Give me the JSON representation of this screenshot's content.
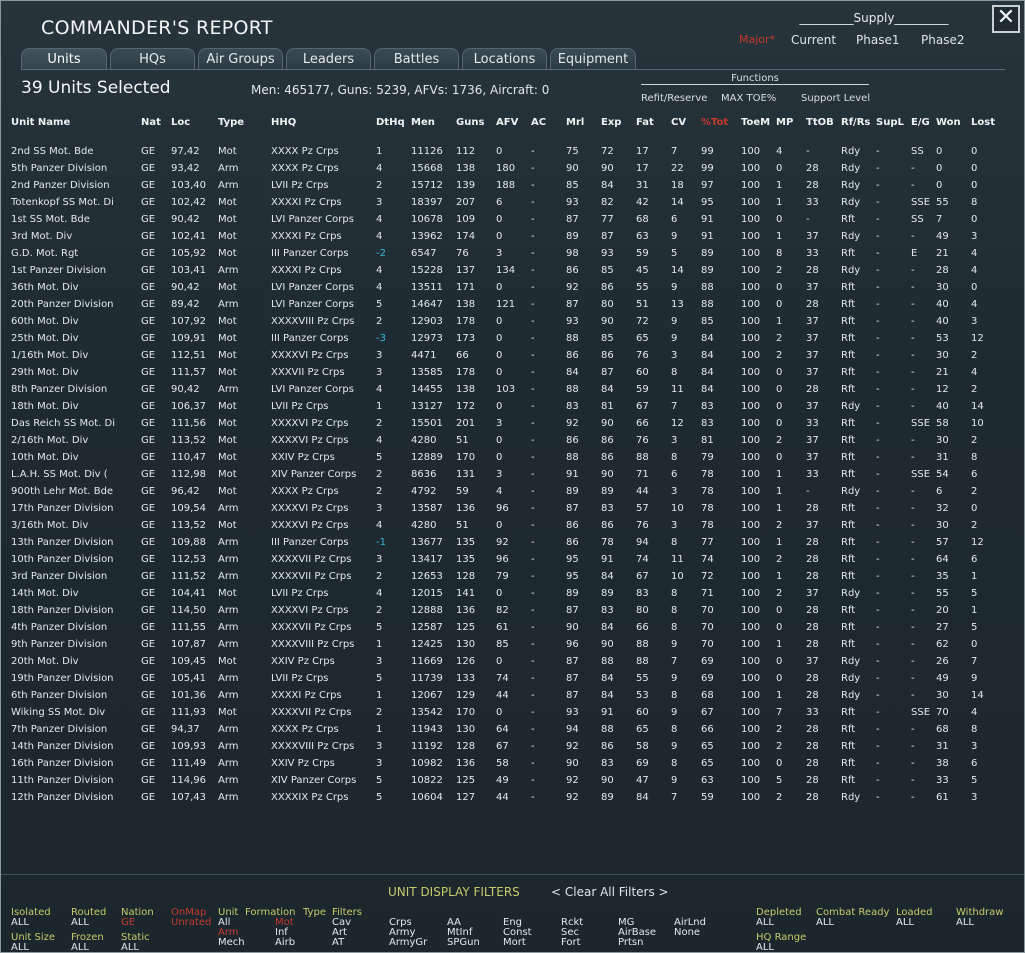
{
  "title": "COMMANDER'S REPORT",
  "close": "✕",
  "supply": {
    "title": "_________Supply_________",
    "major": "Major*",
    "current": "Current",
    "phase1": "Phase1",
    "phase2": "Phase2"
  },
  "tabs": [
    "Units",
    "HQs",
    "Air Groups",
    "Leaders",
    "Battles",
    "Locations",
    "Equipment"
  ],
  "selected": "39 Units Selected",
  "summary": "Men: 465177, Guns: 5239, AFVs: 1736, Aircraft: 0",
  "functions": {
    "title": "Functions",
    "refit": "Refit/Reserve",
    "maxtoe": "MAX TOE%",
    "support": "Support Level"
  },
  "columns": [
    "Unit Name",
    "Nat",
    "Loc",
    "Type",
    "HHQ",
    "DtHq",
    "Men",
    "Guns",
    "AFV",
    "AC",
    "Mrl",
    "Exp",
    "Fat",
    "CV",
    "%Tot",
    "ToeM",
    "MP",
    "TtOB",
    "Rf/Rs",
    "SupL",
    "E/G",
    "Won",
    "Lost"
  ],
  "rows": [
    [
      "2nd SS Mot. Bde",
      "GE",
      "97,42",
      "Mot",
      "XXXX Pz Crps",
      "1",
      "11126",
      "112",
      "0",
      "-",
      "75",
      "72",
      "17",
      "7",
      "99",
      "100",
      "4",
      "-",
      "Rdy",
      "-",
      "SS",
      "0",
      "0"
    ],
    [
      "5th Panzer Division",
      "GE",
      "93,42",
      "Arm",
      "XXXX Pz Crps",
      "4",
      "15668",
      "138",
      "180",
      "-",
      "90",
      "90",
      "17",
      "22",
      "99",
      "100",
      "0",
      "28",
      "Rdy",
      "-",
      "-",
      "0",
      "0"
    ],
    [
      "2nd Panzer Division",
      "GE",
      "103,40",
      "Arm",
      "LVII Pz Crps",
      "2",
      "15712",
      "139",
      "188",
      "-",
      "85",
      "84",
      "31",
      "18",
      "97",
      "100",
      "1",
      "28",
      "Rdy",
      "-",
      "-",
      "0",
      "0"
    ],
    [
      "Totenkopf SS Mot. Di",
      "GE",
      "102,42",
      "Mot",
      "XXXXI Pz Crps",
      "3",
      "18397",
      "207",
      "6",
      "-",
      "93",
      "82",
      "42",
      "14",
      "95",
      "100",
      "1",
      "33",
      "Rdy",
      "-",
      "SSE",
      "55",
      "8"
    ],
    [
      "1st SS Mot. Bde",
      "GE",
      "90,42",
      "Mot",
      "LVI Panzer Corps",
      "4",
      "10678",
      "109",
      "0",
      "-",
      "87",
      "77",
      "68",
      "6",
      "91",
      "100",
      "0",
      "-",
      "Rft",
      "-",
      "SS",
      "7",
      "0"
    ],
    [
      "3rd Mot. Div",
      "GE",
      "102,41",
      "Mot",
      "XXXXI Pz Crps",
      "4",
      "13962",
      "174",
      "0",
      "-",
      "89",
      "87",
      "63",
      "9",
      "91",
      "100",
      "1",
      "37",
      "Rdy",
      "-",
      "-",
      "49",
      "3"
    ],
    [
      "G.D. Mot. Rgt",
      "GE",
      "105,92",
      "Mot",
      "III Panzer Corps",
      "-2",
      "6547",
      "76",
      "3",
      "-",
      "98",
      "93",
      "59",
      "5",
      "89",
      "100",
      "8",
      "33",
      "Rft",
      "-",
      "E",
      "21",
      "4"
    ],
    [
      "1st Panzer Division",
      "GE",
      "103,41",
      "Arm",
      "XXXXI Pz Crps",
      "4",
      "15228",
      "137",
      "134",
      "-",
      "86",
      "85",
      "45",
      "14",
      "89",
      "100",
      "2",
      "28",
      "Rdy",
      "-",
      "-",
      "28",
      "4"
    ],
    [
      "36th Mot. Div",
      "GE",
      "90,42",
      "Mot",
      "LVI Panzer Corps",
      "4",
      "13511",
      "171",
      "0",
      "-",
      "92",
      "86",
      "55",
      "9",
      "88",
      "100",
      "0",
      "37",
      "Rft",
      "-",
      "-",
      "30",
      "0"
    ],
    [
      "20th Panzer Division",
      "GE",
      "89,42",
      "Arm",
      "LVI Panzer Corps",
      "5",
      "14647",
      "138",
      "121",
      "-",
      "87",
      "80",
      "51",
      "13",
      "88",
      "100",
      "0",
      "28",
      "Rft",
      "-",
      "-",
      "40",
      "4"
    ],
    [
      "60th Mot. Div",
      "GE",
      "107,92",
      "Mot",
      "XXXXVIII Pz Crps",
      "2",
      "12903",
      "178",
      "0",
      "-",
      "93",
      "90",
      "72",
      "9",
      "85",
      "100",
      "1",
      "37",
      "Rft",
      "-",
      "-",
      "40",
      "3"
    ],
    [
      "25th Mot. Div",
      "GE",
      "109,91",
      "Mot",
      "III Panzer Corps",
      "-3",
      "12973",
      "173",
      "0",
      "-",
      "88",
      "85",
      "65",
      "9",
      "84",
      "100",
      "2",
      "37",
      "Rft",
      "-",
      "-",
      "53",
      "12"
    ],
    [
      "1/16th Mot. Div",
      "GE",
      "112,51",
      "Mot",
      "XXXXVI Pz Crps",
      "3",
      "4471",
      "66",
      "0",
      "-",
      "86",
      "86",
      "76",
      "3",
      "84",
      "100",
      "2",
      "37",
      "Rft",
      "-",
      "-",
      "30",
      "2"
    ],
    [
      "29th Mot. Div",
      "GE",
      "111,57",
      "Mot",
      "XXXVII Pz Crps",
      "3",
      "13585",
      "178",
      "0",
      "-",
      "84",
      "87",
      "60",
      "8",
      "84",
      "100",
      "0",
      "37",
      "Rft",
      "-",
      "-",
      "21",
      "4"
    ],
    [
      "8th Panzer Division",
      "GE",
      "90,42",
      "Arm",
      "LVI Panzer Corps",
      "4",
      "14455",
      "138",
      "103",
      "-",
      "88",
      "84",
      "59",
      "11",
      "84",
      "100",
      "0",
      "28",
      "Rft",
      "-",
      "-",
      "12",
      "2"
    ],
    [
      "18th Mot. Div",
      "GE",
      "106,37",
      "Mot",
      "LVII Pz Crps",
      "1",
      "13127",
      "172",
      "0",
      "-",
      "83",
      "81",
      "67",
      "7",
      "83",
      "100",
      "0",
      "37",
      "Rdy",
      "-",
      "-",
      "40",
      "14"
    ],
    [
      "Das Reich SS Mot. Di",
      "GE",
      "111,56",
      "Mot",
      "XXXXVI Pz Crps",
      "2",
      "15501",
      "201",
      "3",
      "-",
      "92",
      "90",
      "66",
      "12",
      "83",
      "100",
      "0",
      "33",
      "Rft",
      "-",
      "SSE",
      "58",
      "10"
    ],
    [
      "2/16th Mot. Div",
      "GE",
      "113,52",
      "Mot",
      "XXXXVI Pz Crps",
      "4",
      "4280",
      "51",
      "0",
      "-",
      "86",
      "86",
      "76",
      "3",
      "81",
      "100",
      "2",
      "37",
      "Rft",
      "-",
      "-",
      "30",
      "2"
    ],
    [
      "10th Mot. Div",
      "GE",
      "110,47",
      "Mot",
      "XXIV Pz Crps",
      "5",
      "12889",
      "170",
      "0",
      "-",
      "88",
      "86",
      "88",
      "8",
      "79",
      "100",
      "0",
      "37",
      "Rft",
      "-",
      "-",
      "31",
      "8"
    ],
    [
      "L.A.H. SS Mot. Div (",
      "GE",
      "112,98",
      "Mot",
      "XIV Panzer Corps",
      "2",
      "8636",
      "131",
      "3",
      "-",
      "91",
      "90",
      "71",
      "6",
      "78",
      "100",
      "1",
      "33",
      "Rft",
      "-",
      "SSE",
      "54",
      "6"
    ],
    [
      "900th Lehr Mot. Bde",
      "GE",
      "96,42",
      "Mot",
      "XXXX Pz Crps",
      "2",
      "4792",
      "59",
      "4",
      "-",
      "89",
      "89",
      "44",
      "3",
      "78",
      "100",
      "1",
      "-",
      "Rdy",
      "-",
      "-",
      "6",
      "2"
    ],
    [
      "17th Panzer Division",
      "GE",
      "109,54",
      "Arm",
      "XXXXVI Pz Crps",
      "3",
      "13587",
      "136",
      "96",
      "-",
      "87",
      "83",
      "57",
      "10",
      "78",
      "100",
      "1",
      "28",
      "Rft",
      "-",
      "-",
      "32",
      "0"
    ],
    [
      "3/16th Mot. Div",
      "GE",
      "113,52",
      "Mot",
      "XXXXVI Pz Crps",
      "4",
      "4280",
      "51",
      "0",
      "-",
      "86",
      "86",
      "76",
      "3",
      "78",
      "100",
      "2",
      "37",
      "Rft",
      "-",
      "-",
      "30",
      "2"
    ],
    [
      "13th Panzer Division",
      "GE",
      "109,88",
      "Arm",
      "III Panzer Corps",
      "-1",
      "13677",
      "135",
      "92",
      "-",
      "86",
      "78",
      "94",
      "8",
      "77",
      "100",
      "1",
      "28",
      "Rft",
      "-",
      "-",
      "57",
      "12"
    ],
    [
      "10th Panzer Division",
      "GE",
      "112,53",
      "Arm",
      "XXXXVII Pz Crps",
      "3",
      "13417",
      "135",
      "96",
      "-",
      "95",
      "91",
      "74",
      "11",
      "74",
      "100",
      "2",
      "28",
      "Rft",
      "-",
      "-",
      "64",
      "6"
    ],
    [
      "3rd Panzer Division",
      "GE",
      "111,52",
      "Arm",
      "XXXXVII Pz Crps",
      "2",
      "12653",
      "128",
      "79",
      "-",
      "95",
      "84",
      "67",
      "10",
      "72",
      "100",
      "1",
      "28",
      "Rft",
      "-",
      "-",
      "35",
      "1"
    ],
    [
      "14th Mot. Div",
      "GE",
      "104,41",
      "Mot",
      "LVII Pz Crps",
      "4",
      "12015",
      "141",
      "0",
      "-",
      "89",
      "89",
      "83",
      "8",
      "71",
      "100",
      "2",
      "37",
      "Rdy",
      "-",
      "-",
      "55",
      "5"
    ],
    [
      "18th Panzer Division",
      "GE",
      "114,50",
      "Arm",
      "XXXXVI Pz Crps",
      "2",
      "12888",
      "136",
      "82",
      "-",
      "87",
      "83",
      "80",
      "8",
      "70",
      "100",
      "0",
      "28",
      "Rft",
      "-",
      "-",
      "20",
      "1"
    ],
    [
      "4th Panzer Division",
      "GE",
      "111,55",
      "Arm",
      "XXXXVII Pz Crps",
      "5",
      "12587",
      "125",
      "61",
      "-",
      "90",
      "84",
      "66",
      "8",
      "70",
      "100",
      "0",
      "28",
      "Rft",
      "-",
      "-",
      "27",
      "5"
    ],
    [
      "9th Panzer Division",
      "GE",
      "107,87",
      "Arm",
      "XXXXVIII Pz Crps",
      "1",
      "12425",
      "130",
      "85",
      "-",
      "96",
      "90",
      "88",
      "9",
      "70",
      "100",
      "1",
      "28",
      "Rft",
      "-",
      "-",
      "62",
      "0"
    ],
    [
      "20th Mot. Div",
      "GE",
      "109,45",
      "Mot",
      "XXIV Pz Crps",
      "3",
      "11669",
      "126",
      "0",
      "-",
      "87",
      "88",
      "88",
      "7",
      "69",
      "100",
      "0",
      "37",
      "Rdy",
      "-",
      "-",
      "26",
      "7"
    ],
    [
      "19th Panzer Division",
      "GE",
      "105,41",
      "Arm",
      "LVII Pz Crps",
      "5",
      "11739",
      "133",
      "74",
      "-",
      "87",
      "84",
      "55",
      "9",
      "69",
      "100",
      "0",
      "28",
      "Rdy",
      "-",
      "-",
      "49",
      "9"
    ],
    [
      "6th Panzer Division",
      "GE",
      "101,36",
      "Arm",
      "XXXXI Pz Crps",
      "1",
      "12067",
      "129",
      "44",
      "-",
      "87",
      "84",
      "53",
      "8",
      "68",
      "100",
      "1",
      "28",
      "Rdy",
      "-",
      "-",
      "30",
      "14"
    ],
    [
      "Wiking SS Mot. Div",
      "GE",
      "111,93",
      "Mot",
      "XXXXVII Pz Crps",
      "2",
      "13542",
      "170",
      "0",
      "-",
      "93",
      "91",
      "60",
      "9",
      "67",
      "100",
      "7",
      "33",
      "Rft",
      "-",
      "SSE",
      "70",
      "4"
    ],
    [
      "7th Panzer Division",
      "GE",
      "94,37",
      "Arm",
      "XXXX Pz Crps",
      "1",
      "11943",
      "130",
      "64",
      "-",
      "94",
      "88",
      "65",
      "8",
      "66",
      "100",
      "2",
      "28",
      "Rft",
      "-",
      "-",
      "68",
      "8"
    ],
    [
      "14th Panzer Division",
      "GE",
      "109,93",
      "Arm",
      "XXXXVIII Pz Crps",
      "3",
      "11192",
      "128",
      "67",
      "-",
      "92",
      "86",
      "58",
      "9",
      "65",
      "100",
      "2",
      "28",
      "Rft",
      "-",
      "-",
      "31",
      "3"
    ],
    [
      "16th Panzer Division",
      "GE",
      "111,49",
      "Arm",
      "XXIV Pz Crps",
      "3",
      "10982",
      "136",
      "58",
      "-",
      "90",
      "83",
      "69",
      "8",
      "65",
      "100",
      "0",
      "28",
      "Rft",
      "-",
      "-",
      "38",
      "6"
    ],
    [
      "11th Panzer Division",
      "GE",
      "114,96",
      "Arm",
      "XIV Panzer Corps",
      "5",
      "10822",
      "125",
      "49",
      "-",
      "92",
      "90",
      "47",
      "9",
      "63",
      "100",
      "5",
      "28",
      "Rft",
      "-",
      "-",
      "33",
      "5"
    ],
    [
      "12th Panzer Division",
      "GE",
      "107,43",
      "Arm",
      "XXXXIX Pz Crps",
      "5",
      "10604",
      "127",
      "44",
      "-",
      "92",
      "89",
      "84",
      "7",
      "59",
      "100",
      "2",
      "28",
      "Rdy",
      "-",
      "-",
      "61",
      "3"
    ]
  ],
  "filters": {
    "title": "UNIT DISPLAY FILTERS",
    "clear": "< Clear All Filters >",
    "isolated": "Isolated",
    "isolated_v": "ALL",
    "routed": "Routed",
    "routed_v": "ALL",
    "nation": "Nation",
    "nation_v": "GE",
    "onmap": "OnMap",
    "onmap_v": "Unrated",
    "unit": "Unit",
    "unit_v1": "All",
    "unit_v2": "Arm",
    "unit_v3": "Mech",
    "formation": "Formation",
    "formation_v1": "Mot",
    "formation_v2": "Inf",
    "formation_v3": "Airb",
    "type": "Type",
    "filters": "Filters",
    "cav": "Cav",
    "art": "Art",
    "at": "AT",
    "crps": "Crps",
    "army": "Army",
    "armygr": "ArmyGr",
    "aa": "AA",
    "mtinf": "MtInf",
    "spgun": "SPGun",
    "eng": "Eng",
    "const": "Const",
    "mort": "Mort",
    "rckt": "Rckt",
    "sec": "Sec",
    "fort": "Fort",
    "mg": "MG",
    "airbase": "AirBase",
    "prtsn": "Prtsn",
    "airlnd": "AirLnd",
    "none": "None",
    "unitsize": "Unit Size",
    "unitsize_v": "ALL",
    "frozen": "Frozen",
    "frozen_v": "ALL",
    "static": "Static",
    "static_v": "ALL",
    "depleted": "Depleted",
    "depleted_v": "ALL",
    "combat": "Combat Ready",
    "combat_v": "ALL",
    "loaded": "Loaded",
    "loaded_v": "ALL",
    "withdraw": "Withdraw",
    "withdraw_v": "ALL",
    "hqrange": "HQ Range",
    "hqrange_v": "ALL"
  }
}
